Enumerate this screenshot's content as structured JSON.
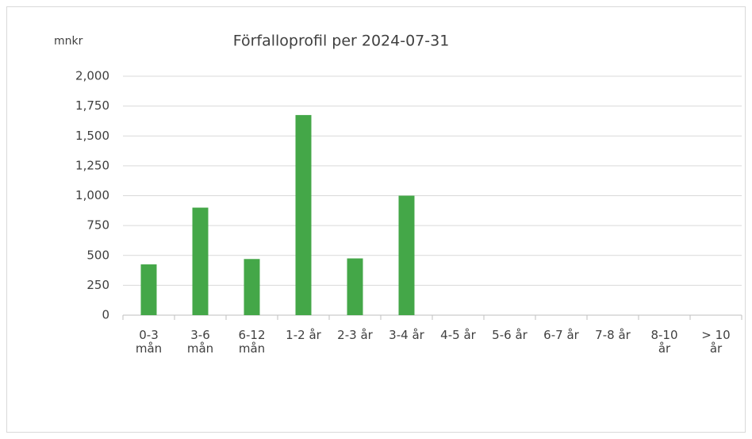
{
  "chart_data": {
    "type": "bar",
    "title": "Förfalloprofil per 2024-07-31",
    "y_label": "mnkr",
    "categories": [
      "0-3 mån",
      "3-6 mån",
      "6-12 mån",
      "1-2 år",
      "2-3 år",
      "3-4 år",
      "4-5 år",
      "5-6 år",
      "6-7 år",
      "7-8 år",
      "8-10 år",
      "> 10 år"
    ],
    "values": [
      425,
      900,
      470,
      1675,
      475,
      1000,
      0,
      0,
      0,
      0,
      0,
      0
    ],
    "color": "#44a748",
    "ylim": [
      0,
      2000
    ],
    "yticks": [
      0,
      250,
      500,
      750,
      {
        "value": 1000,
        "label": "1,000"
      },
      {
        "value": 1250,
        "label": "1,250"
      },
      {
        "value": 1500,
        "label": "1,500"
      },
      {
        "value": 1750,
        "label": "1,750"
      },
      {
        "value": 2000,
        "label": "2,000"
      }
    ],
    "grid": true
  }
}
